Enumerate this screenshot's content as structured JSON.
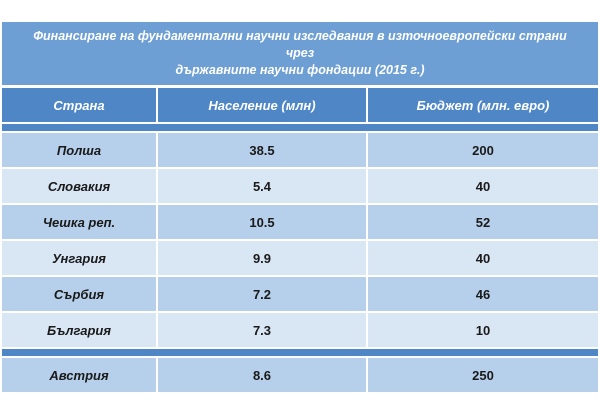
{
  "title_line1": "Финансиране на фундаментални научни изследвания в източноевропейски страни чрез",
  "title_line2": "държавните научни фондации (2015 г.)",
  "headers": [
    "Страна",
    "Население (млн)",
    "Бюджет (млн. евро)"
  ],
  "rows": [
    {
      "country": "Полша",
      "population": "38.5",
      "budget": "200"
    },
    {
      "country": "Словакия",
      "population": "5.4",
      "budget": "40"
    },
    {
      "country": "Чешка реп.",
      "population": "10.5",
      "budget": "52"
    },
    {
      "country": "Унгария",
      "population": "9.9",
      "budget": "40"
    },
    {
      "country": "Сърбия",
      "population": "7.2",
      "budget": "46"
    },
    {
      "country": "България",
      "population": "7.3",
      "budget": "10"
    }
  ],
  "summary": {
    "country": "Австрия",
    "population": "8.6",
    "budget": "250"
  },
  "colors": {
    "title_bg": "#6d9ed4",
    "header_bg": "#4f86c6",
    "row_dark": "#b6d0ec",
    "row_light": "#d9e6f4"
  }
}
